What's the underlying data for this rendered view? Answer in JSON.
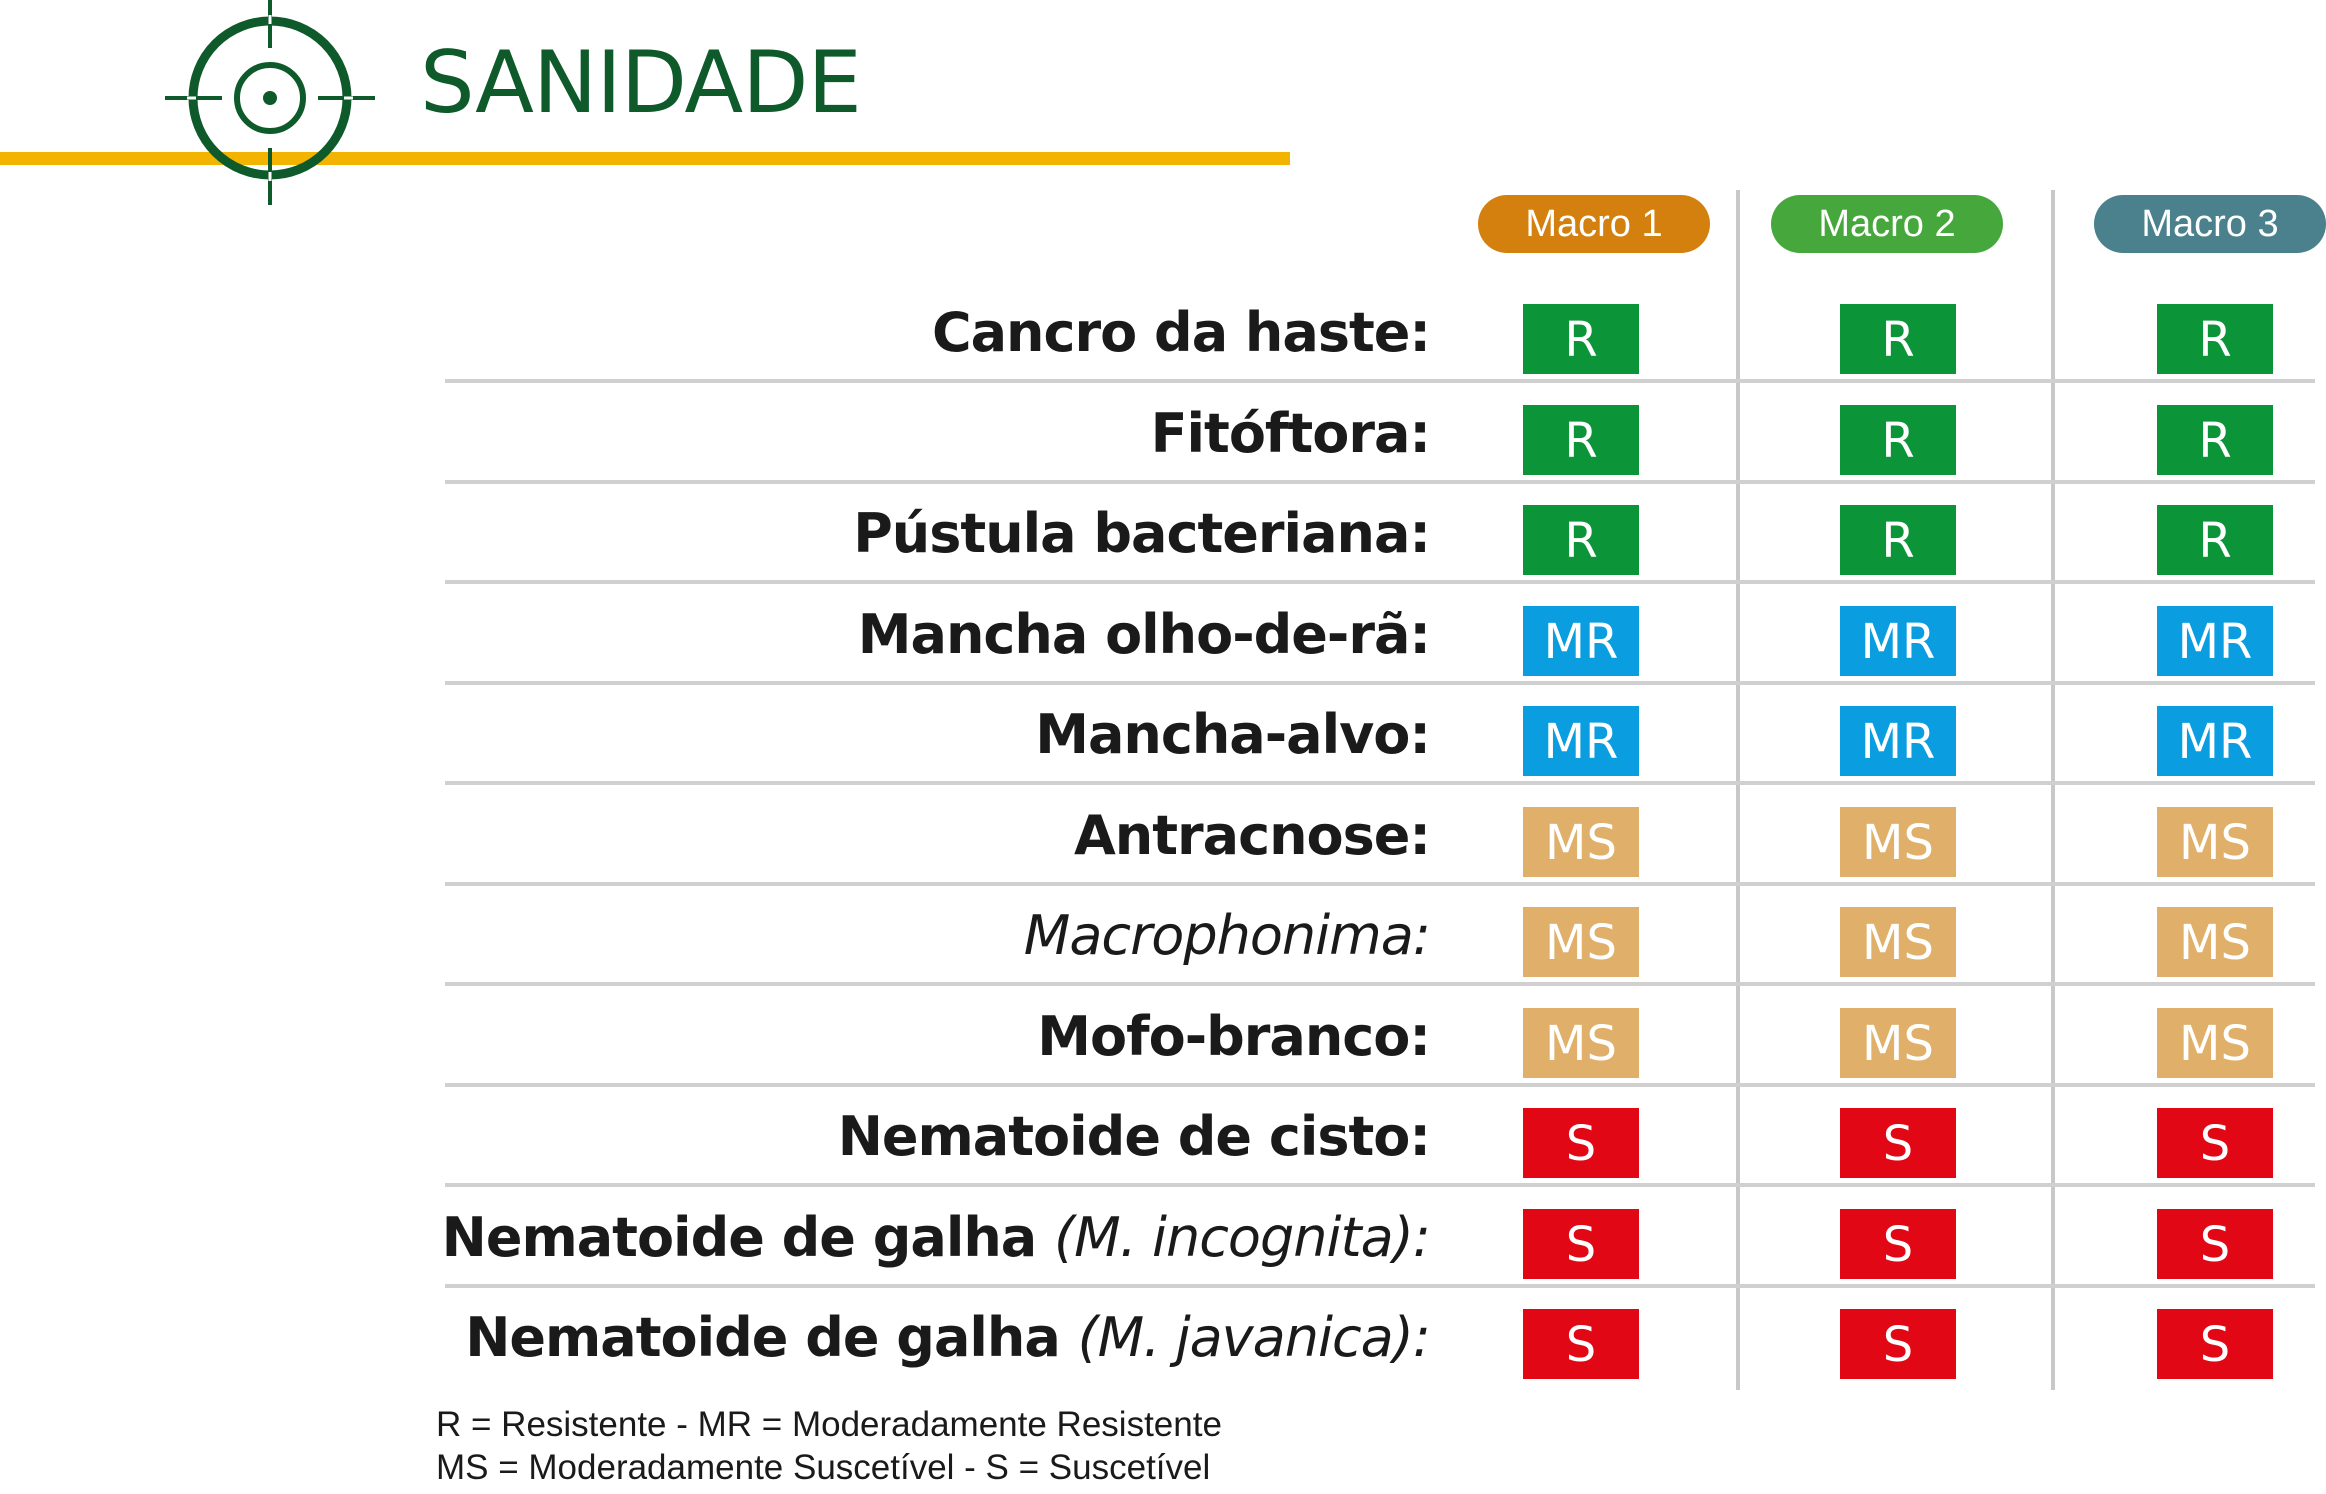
{
  "header": {
    "title": "SANIDADE",
    "icon": "target-crosshair-icon",
    "colors": {
      "title": "#0e5a2b",
      "underline": "#f2b400"
    }
  },
  "columns": [
    {
      "label": "Macro 1",
      "color": "#d4800f"
    },
    {
      "label": "Macro 2",
      "color": "#46a83c"
    },
    {
      "label": "Macro 3",
      "color": "#4a818c"
    }
  ],
  "rating_colors": {
    "R": "#0c9438",
    "MR": "#0a9ee0",
    "MS": "#e0b06a",
    "S": "#e10715"
  },
  "rows": [
    {
      "bold": "Cancro da haste:",
      "italic": "",
      "ratings": [
        "R",
        "R",
        "R"
      ]
    },
    {
      "bold": "Fitóftora:",
      "italic": "",
      "ratings": [
        "R",
        "R",
        "R"
      ]
    },
    {
      "bold": "Pústula bacteriana:",
      "italic": "",
      "ratings": [
        "R",
        "R",
        "R"
      ]
    },
    {
      "bold": "Mancha olho-de-rã:",
      "italic": "",
      "ratings": [
        "MR",
        "MR",
        "MR"
      ]
    },
    {
      "bold": "Mancha-alvo:",
      "italic": "",
      "ratings": [
        "MR",
        "MR",
        "MR"
      ]
    },
    {
      "bold": "Antracnose:",
      "italic": "",
      "ratings": [
        "MS",
        "MS",
        "MS"
      ]
    },
    {
      "bold": "",
      "italic": "Macrophonima:",
      "ratings": [
        "MS",
        "MS",
        "MS"
      ]
    },
    {
      "bold": "Mofo-branco:",
      "italic": "",
      "ratings": [
        "MS",
        "MS",
        "MS"
      ]
    },
    {
      "bold": "Nematoide de cisto:",
      "italic": "",
      "ratings": [
        "S",
        "S",
        "S"
      ]
    },
    {
      "bold": "Nematoide de galha ",
      "italic": "(M. incognita):",
      "ratings": [
        "S",
        "S",
        "S"
      ]
    },
    {
      "bold": "Nematoide de galha ",
      "italic": "(M. javanica):",
      "ratings": [
        "S",
        "S",
        "S"
      ]
    }
  ],
  "legend": {
    "line1": "R  = Resistente - MR  = Moderadamente Resistente",
    "line2": "MS  = Moderadamente Suscetível - S  = Suscetível"
  }
}
